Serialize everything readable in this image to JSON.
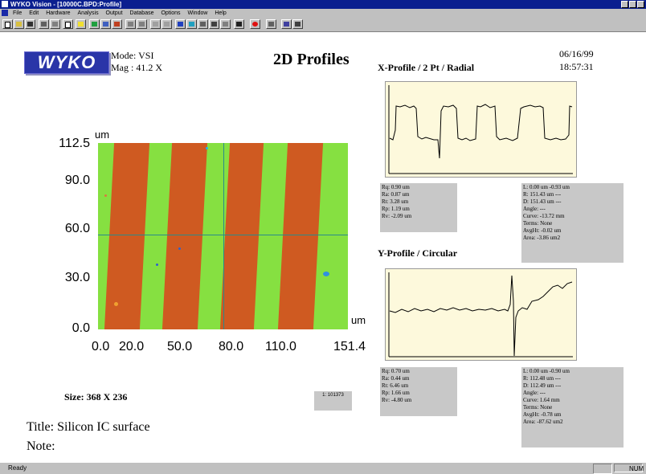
{
  "window": {
    "title": "WYKO Vision - [10000C.BPD:Profile]"
  },
  "menu": [
    "File",
    "Edit",
    "Hardware",
    "Analysis",
    "Output",
    "Database",
    "Options",
    "Window",
    "Help"
  ],
  "header": {
    "logo": "WYKO",
    "mode": "Mode: VSI",
    "mag": "Mag : 41.2 X",
    "title": "2D Profiles",
    "date": "06/16/99",
    "time": "18:57:31"
  },
  "surface": {
    "unit_y": "um",
    "unit_x": "um",
    "y_ticks": [
      "112.5",
      "90.0",
      "60.0",
      "30.0",
      "0.0"
    ],
    "x_ticks": [
      "0.0",
      "20.0",
      "50.0",
      "80.0",
      "110.0",
      "151.4"
    ],
    "colors": {
      "high": "#cf5a21",
      "low": "#86e041",
      "crosshair": "#2a8a8a"
    }
  },
  "x_profile": {
    "title": "X-Profile / 2 Pt / Radial",
    "stats_left": [
      "Rq: 0.90 um",
      "Ra: 0.87 um",
      "Rt: 3.28 um",
      "Rp: 1.19 um",
      "Rv: -2.09 um"
    ],
    "stats_right": [
      "L: 0.00 um -0.93 um",
      "R: 151.43 um ---",
      "D: 151.43 um ---",
      "Angle: ---",
      "Curve: -13.72 mm",
      "Terms: None",
      "AvgHt: -0.02 um",
      "Area: -3.86 um2"
    ]
  },
  "y_profile": {
    "title": "Y-Profile / Circular",
    "stats_left": [
      "Rq: 0.70 um",
      "Ra: 0.44 um",
      "Rt: 6.46 um",
      "Rp: 1.66 um",
      "Rv: -4.80 um"
    ],
    "stats_right": [
      "L: 0.00 um -0.90 um",
      "R: 112.48 um ---",
      "D: 112.49 um ---",
      "Angle: ---",
      "Curve: 1.64 mm",
      "Terms: None",
      "AvgHt: -0.78 um",
      "Area: -87.62 um2"
    ]
  },
  "footer": {
    "size": "Size: 368 X 236",
    "box_text": "1: 101373",
    "title": "Title: Silicon IC surface",
    "note": "Note:"
  },
  "status": {
    "left": "Ready",
    "right": "NUM"
  }
}
